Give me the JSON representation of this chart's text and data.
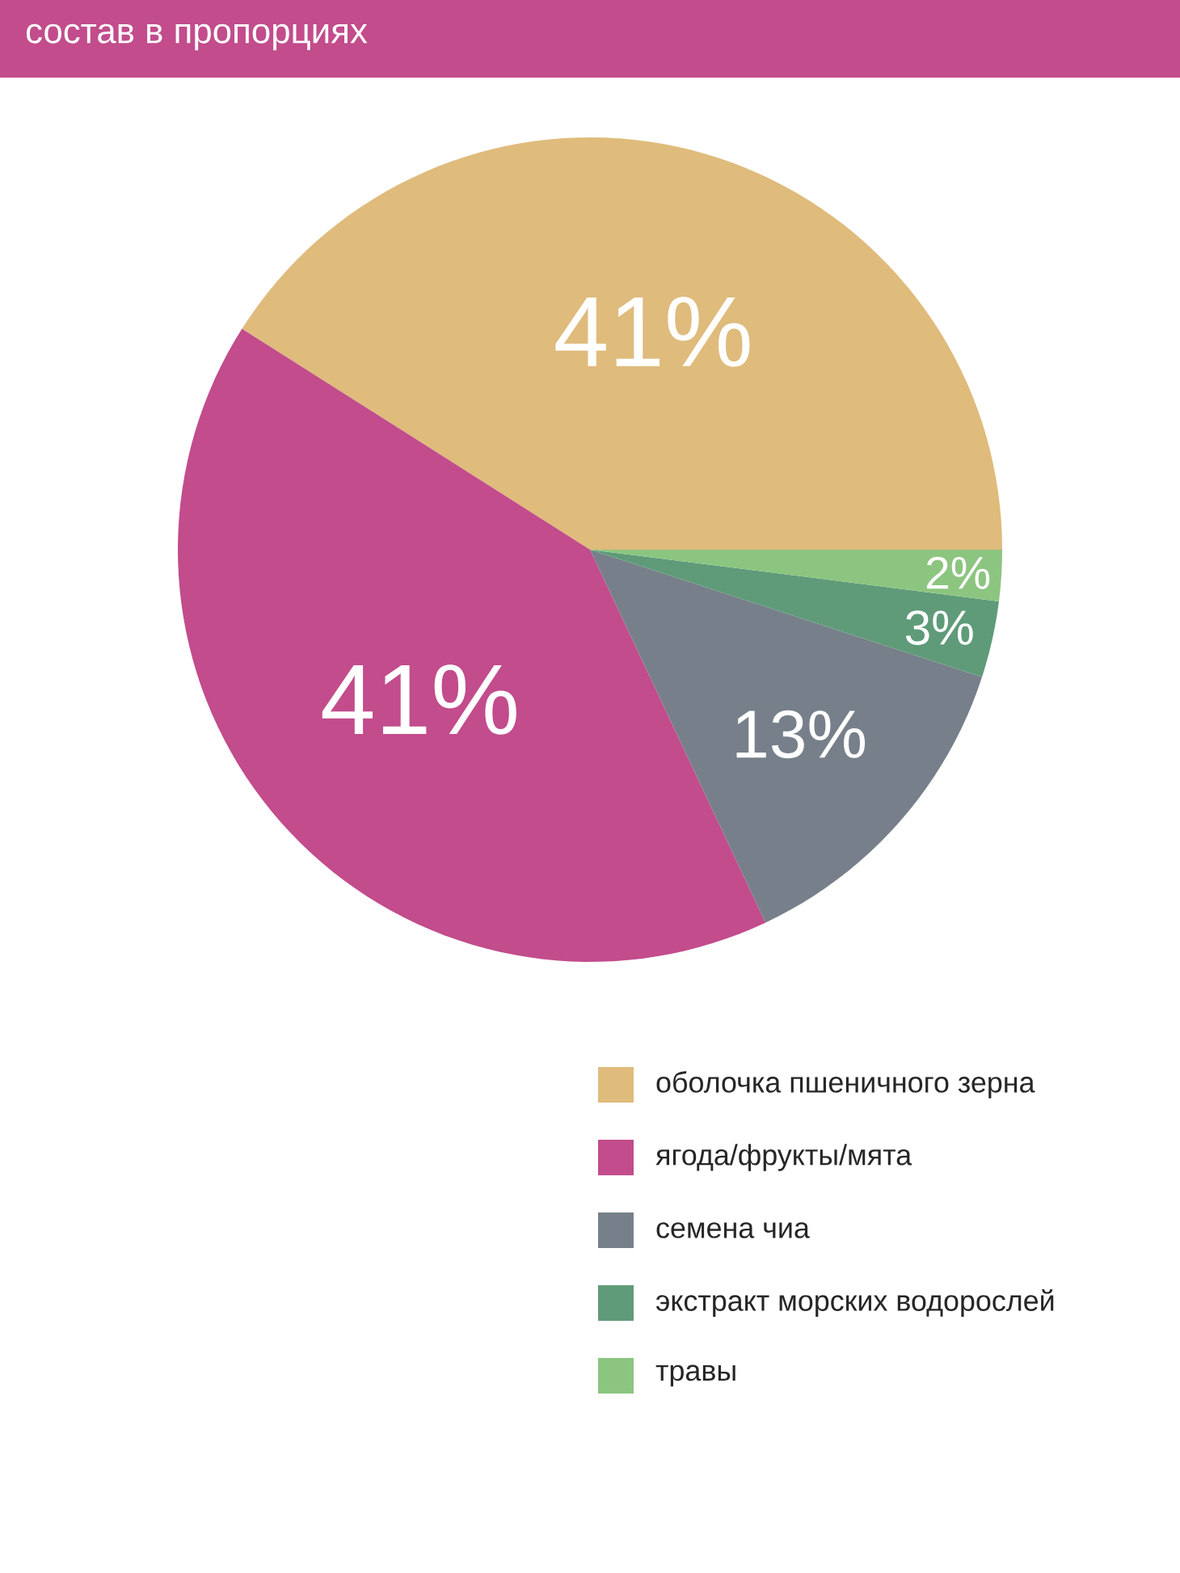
{
  "chart_data": {
    "type": "pie",
    "title": "состав в пропорциях",
    "categories": [
      "оболочка пшеничного зерна",
      "ягода/фрукты/мята",
      "семена чиа",
      "экстракт морских водорослей",
      "травы"
    ],
    "values": [
      41,
      41,
      13,
      3,
      2
    ],
    "colors": [
      "#dfbb7c",
      "#c24c8c",
      "#77808a",
      "#5f9b79",
      "#8cc580"
    ],
    "value_labels": [
      "41%",
      "41%",
      "13%",
      "3%",
      "2%"
    ],
    "legend": "bottom right"
  }
}
